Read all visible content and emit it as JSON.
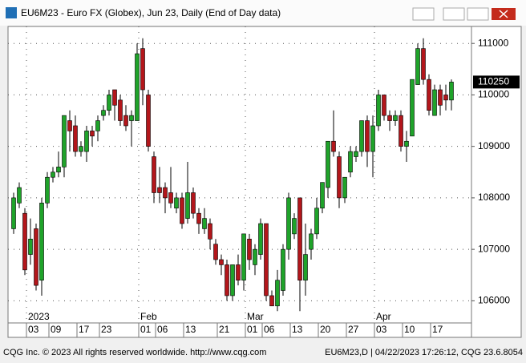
{
  "chart_data": {
    "type": "candlestick",
    "title": "EU6M23 - Euro FX (Globex), Jun 23, Daily (End of Day data)",
    "categories": [
      null,
      null,
      "03",
      null,
      null,
      null,
      "09",
      null,
      null,
      null,
      null,
      "17",
      null,
      null,
      null,
      "23",
      null,
      null,
      null,
      null,
      null,
      null,
      "01",
      null,
      null,
      "06",
      null,
      null,
      null,
      null,
      "13",
      null,
      null,
      null,
      null,
      null,
      "21",
      null,
      null,
      null,
      null,
      "01",
      null,
      null,
      "06",
      null,
      null,
      null,
      null,
      "13",
      null,
      null,
      null,
      null,
      "20",
      null,
      null,
      null,
      null,
      "27",
      null,
      null,
      null,
      null,
      "03",
      null,
      null,
      null,
      null,
      "10",
      null,
      null,
      null,
      null,
      "17",
      null,
      null,
      null,
      null
    ],
    "months": [
      null,
      null,
      "2023",
      null,
      null,
      null,
      null,
      null,
      null,
      null,
      null,
      null,
      null,
      null,
      null,
      null,
      null,
      null,
      null,
      null,
      null,
      null,
      "Feb",
      null,
      null,
      null,
      null,
      null,
      null,
      null,
      null,
      null,
      null,
      null,
      null,
      null,
      null,
      null,
      null,
      null,
      null,
      "Mar",
      null,
      null,
      null,
      null,
      null,
      null,
      null,
      null,
      null,
      null,
      null,
      null,
      null,
      null,
      null,
      null,
      null,
      null,
      null,
      null,
      null,
      null,
      "Apr",
      null,
      null,
      null,
      null,
      null,
      null,
      null,
      null,
      null,
      null,
      null,
      null,
      null,
      null
    ],
    "open": [
      107400,
      107900,
      107700,
      106900,
      107400,
      106400,
      107900,
      108400,
      108500,
      108600,
      109500,
      109400,
      108900,
      108900,
      109300,
      109300,
      109600,
      109700,
      110100,
      109900,
      109600,
      109500,
      109500,
      110900,
      110000,
      108800,
      108200,
      108200,
      108100,
      107800,
      108000,
      107600,
      108100,
      107700,
      107400,
      107500,
      107100,
      106800,
      106700,
      106100,
      106700,
      106400,
      107200,
      106700,
      106900,
      107500,
      106100,
      105900,
      106200,
      107000,
      107300,
      108000,
      106400,
      107000,
      107300,
      107800,
      108200,
      109100,
      108800,
      108000,
      108500,
      108800,
      108900,
      109500,
      108900,
      109400,
      110000,
      109600,
      109500,
      109600,
      109000,
      109200,
      110200,
      110900,
      110300,
      109600,
      110100,
      110000,
      109900
    ],
    "high": [
      108100,
      108300,
      107800,
      107600,
      107500,
      108000,
      108500,
      108600,
      108900,
      109600,
      109700,
      109600,
      109100,
      109400,
      109400,
      109600,
      109800,
      110100,
      110100,
      110000,
      109800,
      109700,
      111000,
      111100,
      110100,
      108900,
      108600,
      108300,
      108600,
      108100,
      108100,
      108700,
      108200,
      107800,
      107800,
      107600,
      107200,
      106900,
      106800,
      106700,
      106900,
      107300,
      107300,
      107100,
      107600,
      107500,
      106200,
      106600,
      107100,
      108100,
      107700,
      108000,
      107500,
      107400,
      108000,
      108300,
      109100,
      109700,
      108900,
      108400,
      109000,
      109000,
      109500,
      109600,
      109600,
      110100,
      110000,
      109700,
      109700,
      109700,
      109300,
      110300,
      111000,
      111100,
      110400,
      110200,
      110200,
      110200,
      110300
    ],
    "low": [
      107300,
      107800,
      106500,
      106700,
      106200,
      106100,
      107800,
      108300,
      108400,
      108400,
      108900,
      108800,
      108800,
      108700,
      109000,
      109100,
      109500,
      109600,
      109500,
      109400,
      109300,
      109000,
      109500,
      109800,
      108900,
      107900,
      107900,
      107700,
      107800,
      107700,
      107400,
      107500,
      107600,
      107300,
      107300,
      107000,
      106700,
      106500,
      106000,
      106000,
      106300,
      106200,
      106600,
      106500,
      106800,
      106000,
      105900,
      105800,
      106100,
      106800,
      107200,
      105800,
      106100,
      106800,
      107200,
      107700,
      108000,
      108800,
      107800,
      107900,
      108400,
      108700,
      108800,
      108600,
      108400,
      109300,
      109500,
      109300,
      109400,
      108900,
      108700,
      109200,
      110200,
      110200,
      109600,
      109600,
      109600,
      109700,
      109700
    ],
    "close": [
      108000,
      108200,
      106600,
      107200,
      106300,
      107900,
      108400,
      108500,
      108600,
      109600,
      109300,
      108900,
      109000,
      109300,
      109200,
      109500,
      109700,
      110000,
      109800,
      109500,
      109400,
      109600,
      110800,
      110100,
      109000,
      108100,
      108100,
      108000,
      107900,
      108000,
      107500,
      108100,
      107700,
      107500,
      107600,
      107200,
      106800,
      106700,
      106100,
      106700,
      106400,
      107300,
      106800,
      107000,
      107500,
      106100,
      105900,
      106400,
      107000,
      108000,
      107600,
      106400,
      106900,
      107300,
      107800,
      108300,
      109100,
      108900,
      108000,
      108400,
      108900,
      108900,
      109500,
      108900,
      109400,
      110000,
      109600,
      109500,
      109600,
      109000,
      109100,
      110300,
      110900,
      110300,
      109700,
      110100,
      109800,
      109900,
      110250
    ],
    "up_color": "#1fa32a",
    "down_color": "#b3161b",
    "ylim": [
      105570,
      111330
    ],
    "yticks": [
      106000,
      107000,
      108000,
      109000,
      110000,
      111000
    ],
    "grid": true
  },
  "footer": {
    "left": "CQG Inc. © 2023 All rights reserved worldwide. http://www.cqg.com",
    "right": "EU6M23,D | 04/22/2023 17:26:12, CQG 23.6.8054"
  }
}
